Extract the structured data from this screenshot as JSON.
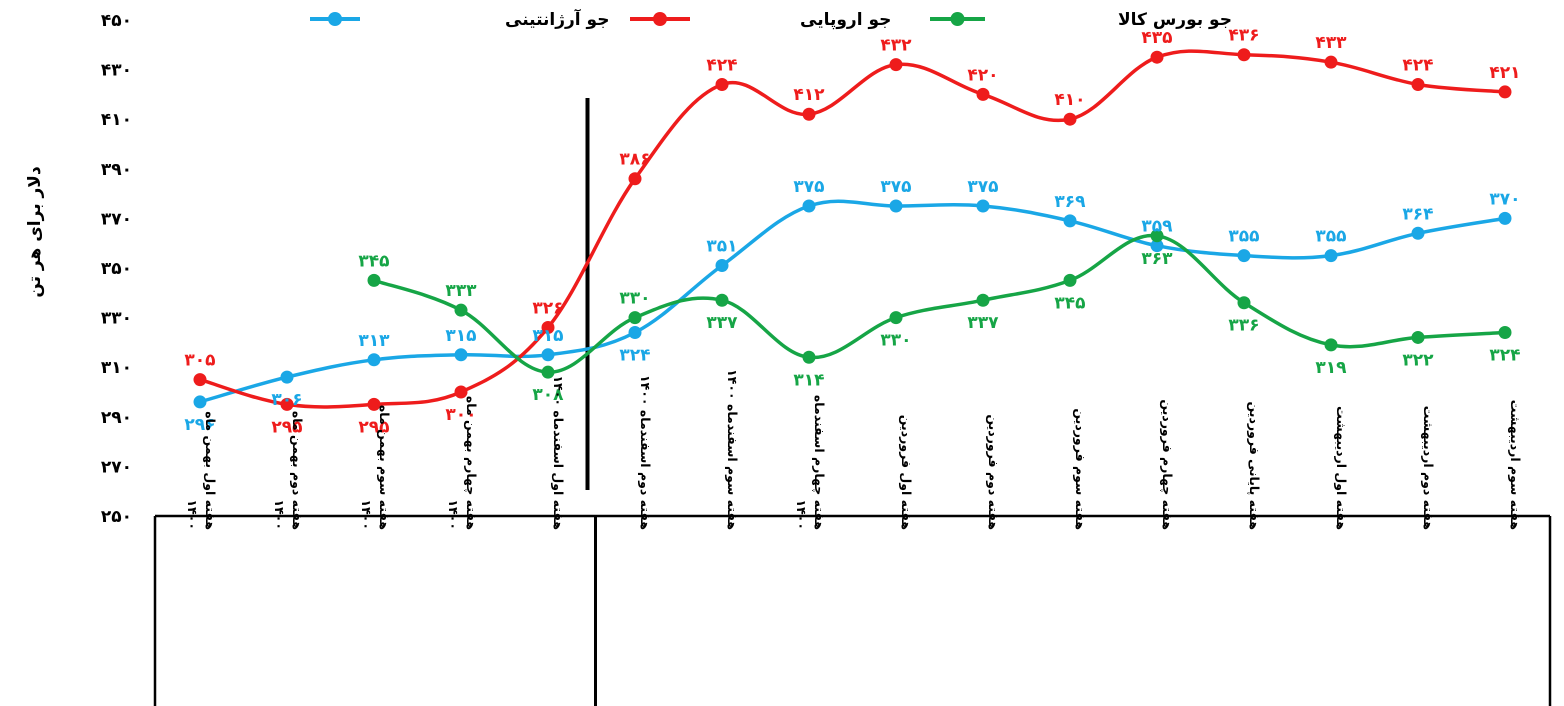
{
  "chart_data": {
    "type": "line",
    "title": "",
    "ylabel": "دلار برای هر تن",
    "xlabel": "",
    "ylim": [
      250,
      450
    ],
    "yticks": [
      {
        "value": 250,
        "label": "۲۵۰"
      },
      {
        "value": 270,
        "label": "۲۷۰"
      },
      {
        "value": 290,
        "label": "۲۹۰"
      },
      {
        "value": 310,
        "label": "۳۱۰"
      },
      {
        "value": 330,
        "label": "۳۳۰"
      },
      {
        "value": 350,
        "label": "۳۵۰"
      },
      {
        "value": 370,
        "label": "۳۷۰"
      },
      {
        "value": 390,
        "label": "۳۹۰"
      },
      {
        "value": 410,
        "label": "۴۱۰"
      },
      {
        "value": 430,
        "label": "۴۳۰"
      },
      {
        "value": 450,
        "label": "۴۵۰"
      }
    ],
    "categories": [
      [
        "هفته اول بهمن ماه",
        "۱۴۰۰"
      ],
      [
        "هفته دوم بهمن ماه",
        "۱۴۰۰"
      ],
      [
        "هفته سوم بهمن ماه",
        "۱۴۰۰"
      ],
      [
        "هفته چهارم بهمن ماه",
        "۱۴۰۰"
      ],
      [
        "هفته اول اسفندماه ۱۴۰۰"
      ],
      [
        "هفته دوم اسفندماه ۱۴۰۰"
      ],
      [
        "هفته سوم اسفندماه ۱۴۰۰"
      ],
      [
        "هفته چهارم اسفندماه",
        "۱۴۰۰"
      ],
      [
        "هفته اول فروردین"
      ],
      [
        "هفته دوم فروردین"
      ],
      [
        "هفته سوم فروردین"
      ],
      [
        "هفته چهارم فروردین"
      ],
      [
        "هفته پایانی فروردین"
      ],
      [
        "هفته اول اردیبهشت"
      ],
      [
        "هفته دوم اردیبهشت"
      ],
      [
        "هفته سوم اردیبهشت"
      ]
    ],
    "divider_after_index": 4,
    "legend_position": "top",
    "series": [
      {
        "name": "جو آرژانتینی",
        "color": "#1aa7e6",
        "values": [
          296,
          306,
          313,
          315,
          315,
          324,
          351,
          375,
          375,
          375,
          369,
          359,
          355,
          355,
          364,
          370
        ],
        "labels": [
          "۲۹۶",
          "۳۰۶",
          "۳۱۳",
          "۳۱۵",
          "۳۱۵",
          "۳۲۴",
          "۳۵۱",
          "۳۷۵",
          "۳۷۵",
          "۳۷۵",
          "۳۶۹",
          "۳۵۹",
          "۳۵۵",
          "۳۵۵",
          "۳۶۴",
          "۳۷۰"
        ]
      },
      {
        "name": "جو اروپایی",
        "color": "#ee1c1c",
        "values": [
          305,
          295,
          295,
          300,
          326,
          386,
          424,
          412,
          432,
          420,
          410,
          435,
          436,
          433,
          424,
          421
        ],
        "labels": [
          "۳۰۵",
          "۲۹۵",
          "۲۹۵",
          "۳۰۰",
          "۳۲۶",
          "۳۸۶",
          "۴۲۴",
          "۴۱۲",
          "۴۳۲",
          "۴۲۰",
          "۴۱۰",
          "۴۳۵",
          "۴۳۶",
          "۴۳۳",
          "۴۲۴",
          "۴۲۱"
        ]
      },
      {
        "name": "جو بورس کالا",
        "color": "#16a546",
        "values": [
          null,
          null,
          345,
          333,
          308,
          330,
          337,
          314,
          330,
          337,
          345,
          363,
          336,
          319,
          322,
          324
        ],
        "labels": [
          null,
          null,
          "۳۴۵",
          "۳۳۳",
          "۳۰۸",
          "۳۳۰",
          "۳۳۷",
          "۳۱۴",
          "۳۳۰",
          "۳۳۷",
          "۳۴۵",
          "۳۶۳",
          "۳۳۶",
          "۳۱۹",
          "۳۲۲",
          "۳۲۴"
        ]
      }
    ]
  }
}
